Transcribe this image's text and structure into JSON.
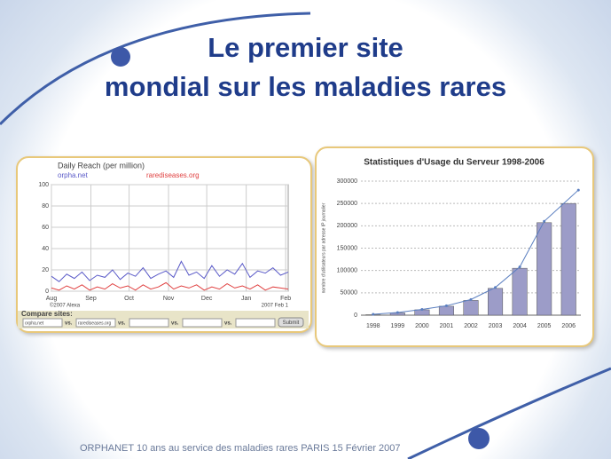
{
  "slide": {
    "title": [
      "Le premier site",
      "mondial sur les maladies rares"
    ],
    "footer": "ORPHANET 10 ans au service des maladies rares PARIS 15 Février 2007"
  },
  "chart_data": [
    {
      "type": "line",
      "title": "Daily Reach (per million)",
      "x": [
        0,
        6,
        12,
        18,
        24,
        30,
        36,
        42,
        48,
        54,
        60,
        66,
        72,
        78,
        84,
        90,
        96,
        102,
        108,
        114,
        120,
        126,
        132,
        138,
        144,
        150,
        156,
        162,
        168,
        174,
        180,
        186
      ],
      "xlim": [
        0,
        186
      ],
      "xticks": [
        {
          "value": 0,
          "label": "Aug"
        },
        {
          "value": 31,
          "label": "Sep"
        },
        {
          "value": 61,
          "label": "Oct"
        },
        {
          "value": 92,
          "label": "Nov"
        },
        {
          "value": 122,
          "label": "Dec"
        },
        {
          "value": 153,
          "label": "Jan"
        },
        {
          "value": 184,
          "label": "Feb"
        }
      ],
      "ylim": [
        0,
        100
      ],
      "yticks": [
        0,
        20,
        40,
        60,
        80,
        100
      ],
      "grid": true,
      "series": [
        {
          "name": "orpha.net",
          "color": "#5a5ac8",
          "values": [
            14,
            9,
            16,
            12,
            18,
            10,
            15,
            13,
            20,
            11,
            17,
            14,
            22,
            12,
            16,
            19,
            13,
            28,
            15,
            18,
            12,
            24,
            14,
            20,
            16,
            26,
            13,
            19,
            17,
            22,
            15,
            18
          ]
        },
        {
          "name": "rarediseases.org",
          "color": "#e04040",
          "values": [
            3,
            1,
            5,
            2,
            6,
            1,
            4,
            2,
            7,
            3,
            5,
            1,
            6,
            2,
            4,
            8,
            2,
            5,
            3,
            6,
            1,
            4,
            2,
            7,
            3,
            5,
            2,
            6,
            1,
            4,
            3,
            2
          ]
        }
      ],
      "notes": [
        "©2007 Alexa",
        "2007 Feb 1"
      ],
      "compare": {
        "label": "Compare sites:",
        "sites": [
          "orpha.net",
          "rarediseases.org"
        ],
        "vs": "vs.",
        "button": "Submit"
      }
    },
    {
      "type": "bar",
      "title": "Statistiques d'Usage du Serveur 1998-2006",
      "categories": [
        "1998",
        "1999",
        "2000",
        "2001",
        "2002",
        "2003",
        "2004",
        "2005",
        "2006"
      ],
      "values": [
        1000,
        5000,
        12000,
        20000,
        33000,
        60000,
        105000,
        207000,
        250000
      ],
      "color": "#9c9cc8",
      "trend": {
        "color": "#5b7fc0",
        "values": [
          2000,
          6000,
          13000,
          21000,
          35000,
          62000,
          108000,
          210000,
          280000
        ]
      },
      "y_label": "nombre d'utilisateurs par adresse IP journalier",
      "ylim": [
        0,
        300000
      ],
      "yticks": [
        0,
        50000,
        100000,
        150000,
        200000,
        250000,
        300000
      ],
      "grid": true
    }
  ]
}
